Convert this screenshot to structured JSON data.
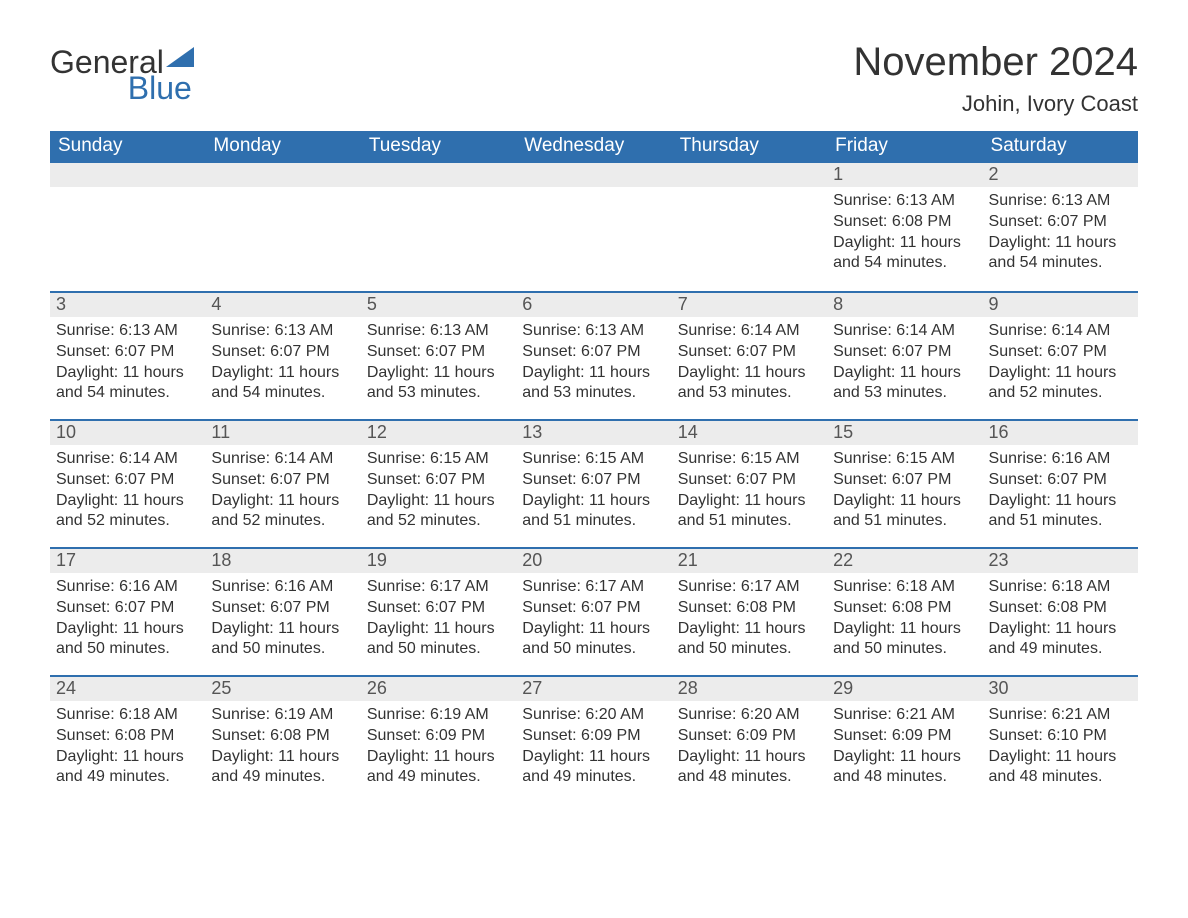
{
  "logo": {
    "word1": "General",
    "word2": "Blue",
    "triangle_color": "#2f6fae"
  },
  "title": "November 2024",
  "subtitle": "Johin, Ivory Coast",
  "colors": {
    "header_bg": "#2f6fae",
    "header_text": "#ffffff",
    "daynum_bg": "#ececec",
    "daynum_border": "#2f6fae",
    "body_text": "#333333",
    "page_bg": "#ffffff"
  },
  "fonts": {
    "title_size_pt": 30,
    "subtitle_size_pt": 16,
    "header_size_pt": 14,
    "body_size_pt": 12
  },
  "weekdays": [
    "Sunday",
    "Monday",
    "Tuesday",
    "Wednesday",
    "Thursday",
    "Friday",
    "Saturday"
  ],
  "weeks": [
    [
      null,
      null,
      null,
      null,
      null,
      {
        "n": "1",
        "sunrise": "Sunrise: 6:13 AM",
        "sunset": "Sunset: 6:08 PM",
        "daylight": "Daylight: 11 hours and 54 minutes."
      },
      {
        "n": "2",
        "sunrise": "Sunrise: 6:13 AM",
        "sunset": "Sunset: 6:07 PM",
        "daylight": "Daylight: 11 hours and 54 minutes."
      }
    ],
    [
      {
        "n": "3",
        "sunrise": "Sunrise: 6:13 AM",
        "sunset": "Sunset: 6:07 PM",
        "daylight": "Daylight: 11 hours and 54 minutes."
      },
      {
        "n": "4",
        "sunrise": "Sunrise: 6:13 AM",
        "sunset": "Sunset: 6:07 PM",
        "daylight": "Daylight: 11 hours and 54 minutes."
      },
      {
        "n": "5",
        "sunrise": "Sunrise: 6:13 AM",
        "sunset": "Sunset: 6:07 PM",
        "daylight": "Daylight: 11 hours and 53 minutes."
      },
      {
        "n": "6",
        "sunrise": "Sunrise: 6:13 AM",
        "sunset": "Sunset: 6:07 PM",
        "daylight": "Daylight: 11 hours and 53 minutes."
      },
      {
        "n": "7",
        "sunrise": "Sunrise: 6:14 AM",
        "sunset": "Sunset: 6:07 PM",
        "daylight": "Daylight: 11 hours and 53 minutes."
      },
      {
        "n": "8",
        "sunrise": "Sunrise: 6:14 AM",
        "sunset": "Sunset: 6:07 PM",
        "daylight": "Daylight: 11 hours and 53 minutes."
      },
      {
        "n": "9",
        "sunrise": "Sunrise: 6:14 AM",
        "sunset": "Sunset: 6:07 PM",
        "daylight": "Daylight: 11 hours and 52 minutes."
      }
    ],
    [
      {
        "n": "10",
        "sunrise": "Sunrise: 6:14 AM",
        "sunset": "Sunset: 6:07 PM",
        "daylight": "Daylight: 11 hours and 52 minutes."
      },
      {
        "n": "11",
        "sunrise": "Sunrise: 6:14 AM",
        "sunset": "Sunset: 6:07 PM",
        "daylight": "Daylight: 11 hours and 52 minutes."
      },
      {
        "n": "12",
        "sunrise": "Sunrise: 6:15 AM",
        "sunset": "Sunset: 6:07 PM",
        "daylight": "Daylight: 11 hours and 52 minutes."
      },
      {
        "n": "13",
        "sunrise": "Sunrise: 6:15 AM",
        "sunset": "Sunset: 6:07 PM",
        "daylight": "Daylight: 11 hours and 51 minutes."
      },
      {
        "n": "14",
        "sunrise": "Sunrise: 6:15 AM",
        "sunset": "Sunset: 6:07 PM",
        "daylight": "Daylight: 11 hours and 51 minutes."
      },
      {
        "n": "15",
        "sunrise": "Sunrise: 6:15 AM",
        "sunset": "Sunset: 6:07 PM",
        "daylight": "Daylight: 11 hours and 51 minutes."
      },
      {
        "n": "16",
        "sunrise": "Sunrise: 6:16 AM",
        "sunset": "Sunset: 6:07 PM",
        "daylight": "Daylight: 11 hours and 51 minutes."
      }
    ],
    [
      {
        "n": "17",
        "sunrise": "Sunrise: 6:16 AM",
        "sunset": "Sunset: 6:07 PM",
        "daylight": "Daylight: 11 hours and 50 minutes."
      },
      {
        "n": "18",
        "sunrise": "Sunrise: 6:16 AM",
        "sunset": "Sunset: 6:07 PM",
        "daylight": "Daylight: 11 hours and 50 minutes."
      },
      {
        "n": "19",
        "sunrise": "Sunrise: 6:17 AM",
        "sunset": "Sunset: 6:07 PM",
        "daylight": "Daylight: 11 hours and 50 minutes."
      },
      {
        "n": "20",
        "sunrise": "Sunrise: 6:17 AM",
        "sunset": "Sunset: 6:07 PM",
        "daylight": "Daylight: 11 hours and 50 minutes."
      },
      {
        "n": "21",
        "sunrise": "Sunrise: 6:17 AM",
        "sunset": "Sunset: 6:08 PM",
        "daylight": "Daylight: 11 hours and 50 minutes."
      },
      {
        "n": "22",
        "sunrise": "Sunrise: 6:18 AM",
        "sunset": "Sunset: 6:08 PM",
        "daylight": "Daylight: 11 hours and 50 minutes."
      },
      {
        "n": "23",
        "sunrise": "Sunrise: 6:18 AM",
        "sunset": "Sunset: 6:08 PM",
        "daylight": "Daylight: 11 hours and 49 minutes."
      }
    ],
    [
      {
        "n": "24",
        "sunrise": "Sunrise: 6:18 AM",
        "sunset": "Sunset: 6:08 PM",
        "daylight": "Daylight: 11 hours and 49 minutes."
      },
      {
        "n": "25",
        "sunrise": "Sunrise: 6:19 AM",
        "sunset": "Sunset: 6:08 PM",
        "daylight": "Daylight: 11 hours and 49 minutes."
      },
      {
        "n": "26",
        "sunrise": "Sunrise: 6:19 AM",
        "sunset": "Sunset: 6:09 PM",
        "daylight": "Daylight: 11 hours and 49 minutes."
      },
      {
        "n": "27",
        "sunrise": "Sunrise: 6:20 AM",
        "sunset": "Sunset: 6:09 PM",
        "daylight": "Daylight: 11 hours and 49 minutes."
      },
      {
        "n": "28",
        "sunrise": "Sunrise: 6:20 AM",
        "sunset": "Sunset: 6:09 PM",
        "daylight": "Daylight: 11 hours and 48 minutes."
      },
      {
        "n": "29",
        "sunrise": "Sunrise: 6:21 AM",
        "sunset": "Sunset: 6:09 PM",
        "daylight": "Daylight: 11 hours and 48 minutes."
      },
      {
        "n": "30",
        "sunrise": "Sunrise: 6:21 AM",
        "sunset": "Sunset: 6:10 PM",
        "daylight": "Daylight: 11 hours and 48 minutes."
      }
    ]
  ]
}
